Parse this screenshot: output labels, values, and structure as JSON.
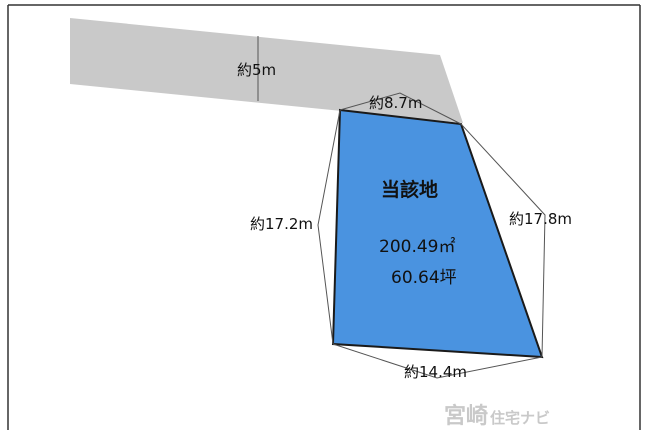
{
  "diagram": {
    "road_label": "約5m",
    "dimensions": {
      "top": "約8.7m",
      "left": "約17.2m",
      "right": "約17.8m",
      "bottom": "約14.4m"
    },
    "lot": {
      "name": "当該地",
      "area_m2": "200.49㎡",
      "area_tsubo": "60.64坪"
    },
    "colors": {
      "road": "#c9c9c9",
      "lot_fill": "#4a93e0",
      "lot_stroke": "#1a1a1a",
      "dimension_line": "#555555",
      "frame": "#333333"
    }
  },
  "watermark": {
    "main": "宮崎",
    "sub": "住宅ナビ"
  }
}
